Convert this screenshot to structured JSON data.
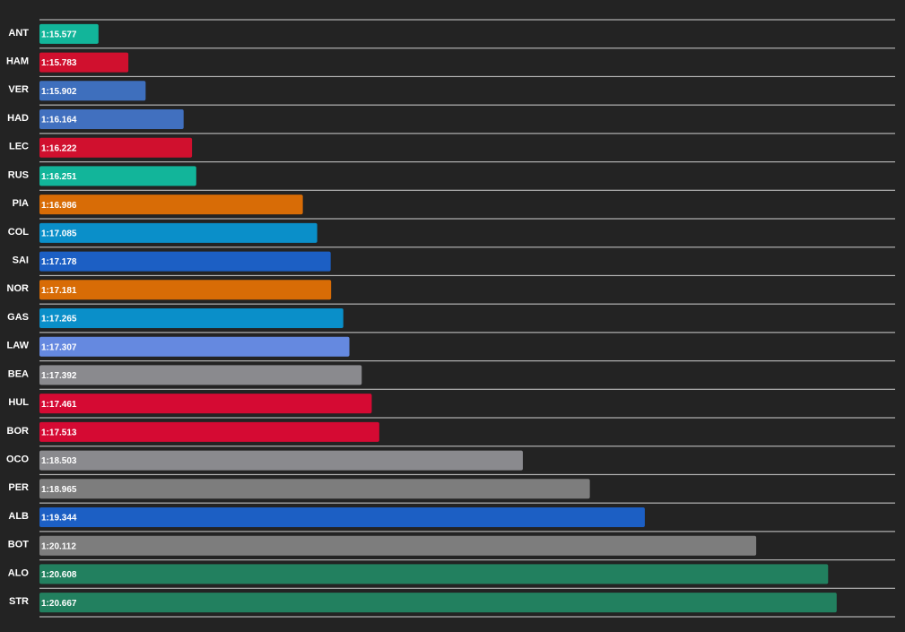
{
  "chart_data": {
    "type": "bar",
    "orientation": "horizontal",
    "categories": [
      "ANT",
      "HAM",
      "VER",
      "HAD",
      "LEC",
      "RUS",
      "PIA",
      "COL",
      "SAI",
      "NOR",
      "GAS",
      "LAW",
      "BEA",
      "HUL",
      "BOR",
      "OCO",
      "PER",
      "ALB",
      "BOT",
      "ALO",
      "STR"
    ],
    "values": [
      75.577,
      75.783,
      75.902,
      76.164,
      76.222,
      76.251,
      76.986,
      77.085,
      77.178,
      77.181,
      77.265,
      77.307,
      77.392,
      77.461,
      77.513,
      78.503,
      78.965,
      79.344,
      80.112,
      80.608,
      80.667
    ],
    "value_labels": [
      "1:15.577",
      "1:15.783",
      "1:15.902",
      "1:16.164",
      "1:16.222",
      "1:16.251",
      "1:16.986",
      "1:17.085",
      "1:17.178",
      "1:17.181",
      "1:17.265",
      "1:17.307",
      "1:17.392",
      "1:17.461",
      "1:17.513",
      "1:18.503",
      "1:18.965",
      "1:19.344",
      "1:20.112",
      "1:20.608",
      "1:20.667"
    ],
    "colors": [
      "#12b59a",
      "#d0102e",
      "#3e6fbd",
      "#4170bf",
      "#d0102e",
      "#12b59a",
      "#d86c06",
      "#0a8fc9",
      "#1c5fc4",
      "#d86c06",
      "#0a8fc9",
      "#6589e0",
      "#8a8a8e",
      "#d50a33",
      "#d50a33",
      "#8a8a8e",
      "#7d7d7d",
      "#1c5fc4",
      "#7d7d7d",
      "#22805f",
      "#22805f"
    ],
    "xlim": [
      75.17,
      81.07
    ]
  }
}
